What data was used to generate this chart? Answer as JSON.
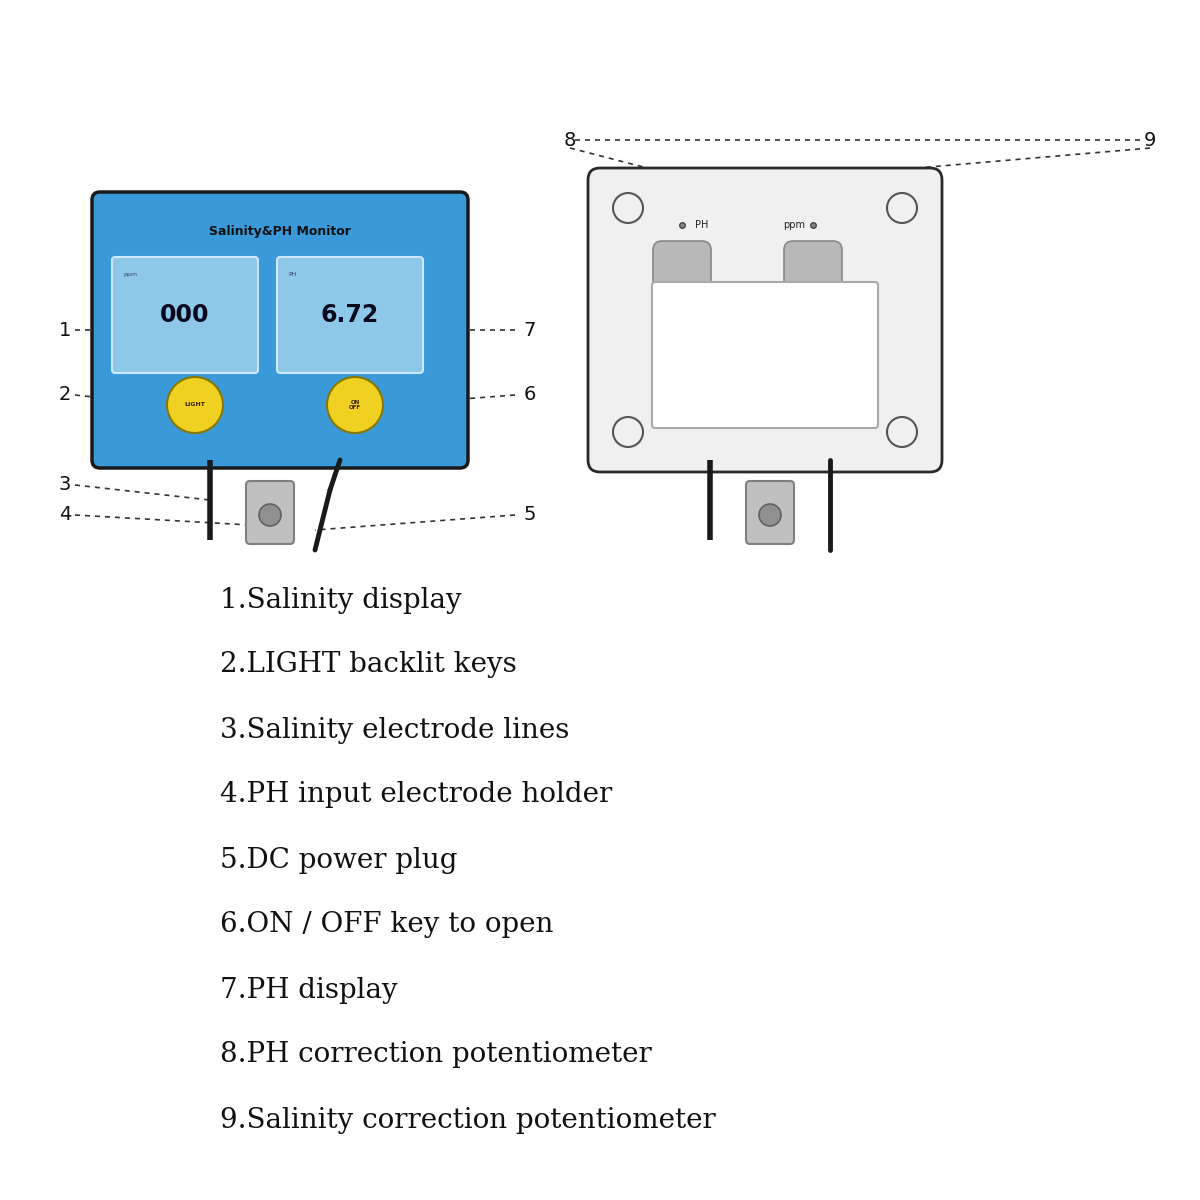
{
  "bg_color": "#ffffff",
  "device_bg": "#3a9ad9",
  "device_border": "#1a1a1a",
  "display_bg": "#8ec8e8",
  "display_text_color": "#0a0a1e",
  "button_color": "#f0d020",
  "button_border": "#888800",
  "title_text": "Salinity&PH Monitor",
  "display1_text": "000",
  "display2_text": "6.72",
  "btn1_text": "LIGHT",
  "btn2_text": "ON\nOFF",
  "labels": [
    "1.Salinity display",
    "2.LIGHT backlit keys",
    "3.Salinity electrode lines",
    "4.PH input electrode holder",
    "5.DC power plug",
    "6.ON / OFF key to open",
    "7.PH display",
    "8.PH correction potentiometer",
    "9.Salinity correction potentiometer"
  ],
  "font_size_labels": 20,
  "ann_fontsize": 14
}
